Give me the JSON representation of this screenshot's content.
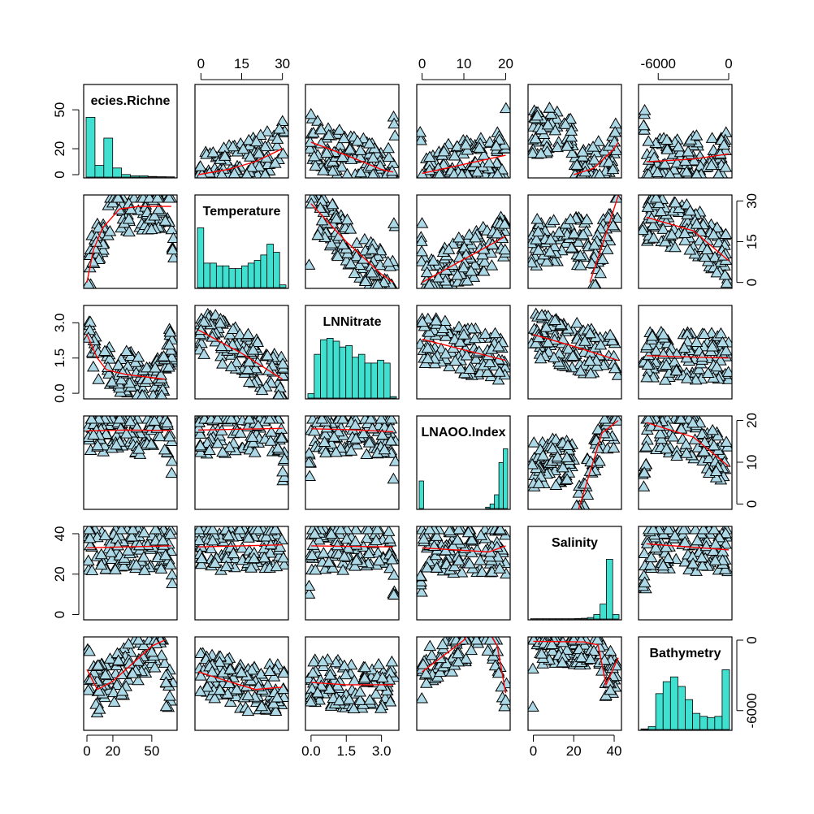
{
  "chart_data": {
    "type": "scatter-matrix",
    "title": "",
    "variables": [
      {
        "name": "Species.Richness",
        "display_label": "ecies.Richne",
        "range": [
          0,
          67
        ],
        "tick_values": [
          0,
          20,
          50
        ],
        "tick_labels": [
          "0",
          "20",
          "50"
        ],
        "hist_counts": [
          46,
          9,
          30,
          7,
          2,
          1,
          1,
          0.5,
          0.3,
          0.2
        ]
      },
      {
        "name": "Temperature",
        "display_label": "Temperature",
        "range": [
          -1,
          31
        ],
        "tick_values": [
          0,
          15,
          30
        ],
        "tick_labels": [
          "0",
          "15",
          "30"
        ],
        "hist_counts": [
          22,
          9,
          9,
          8,
          8,
          7,
          7,
          8,
          9,
          10,
          12,
          16,
          13,
          1
        ]
      },
      {
        "name": "LNNitrate",
        "display_label": "LNNitrate",
        "range": [
          -0.1,
          3.6
        ],
        "tick_values": [
          0.0,
          1.5,
          3.0
        ],
        "tick_labels": [
          "0.0",
          "1.5",
          "3.0"
        ],
        "hist_counts": [
          3,
          30,
          40,
          41,
          39,
          35,
          36,
          28,
          30,
          24,
          24,
          26,
          24,
          1
        ]
      },
      {
        "name": "LNAOO.Index",
        "display_label": "LNAOO.Index",
        "range": [
          -0.5,
          20.3
        ],
        "tick_values": [
          0,
          10,
          20
        ],
        "tick_labels": [
          "0",
          "10",
          "20"
        ],
        "hist_counts": [
          6,
          0,
          0,
          0,
          0,
          0,
          0,
          0,
          0,
          0,
          0,
          0,
          0,
          0,
          0,
          0.3,
          1,
          3,
          10,
          13
        ]
      },
      {
        "name": "Salinity",
        "display_label": "Salinity",
        "range": [
          -1,
          42
        ],
        "tick_values": [
          0,
          20,
          40
        ],
        "tick_labels": [
          "0",
          "20",
          "40"
        ],
        "hist_counts": [
          0.2,
          0.2,
          0.2,
          0.2,
          0.2,
          0.2,
          0.2,
          0.3,
          0.5,
          1,
          3,
          10,
          40,
          3
        ]
      },
      {
        "name": "Bathymetry",
        "display_label": "Bathymetry",
        "range": [
          -7400,
          0
        ],
        "tick_values": [
          -6000,
          0
        ],
        "tick_labels": [
          "-6000",
          "0"
        ],
        "hist_counts": [
          1,
          5,
          60,
          80,
          88,
          72,
          50,
          27,
          22,
          20,
          22,
          100
        ]
      }
    ],
    "red_lowess_lines": {
      "1,0": [
        [
          0,
          0
        ],
        [
          5,
          12
        ],
        [
          12,
          20
        ],
        [
          25,
          27
        ],
        [
          40,
          28
        ],
        [
          65,
          28
        ]
      ],
      "2,0": [
        [
          0,
          2.5
        ],
        [
          8,
          1.5
        ],
        [
          15,
          1.0
        ],
        [
          30,
          0.8
        ],
        [
          60,
          0.6
        ]
      ],
      "3,0": [
        [
          0,
          17.5
        ],
        [
          30,
          17.7
        ],
        [
          65,
          17.6
        ]
      ],
      "4,0": [
        [
          0,
          33
        ],
        [
          30,
          33.5
        ],
        [
          65,
          34
        ]
      ],
      "5,0": [
        [
          0,
          -2500
        ],
        [
          8,
          -4200
        ],
        [
          20,
          -3500
        ],
        [
          35,
          -2000
        ],
        [
          50,
          -500
        ],
        [
          60,
          0
        ]
      ],
      "0,1": [
        [
          -1,
          0
        ],
        [
          10,
          4
        ],
        [
          20,
          10
        ],
        [
          30,
          20
        ]
      ],
      "2,1": [
        [
          -1,
          2.7
        ],
        [
          15,
          1.7
        ],
        [
          30,
          0.6
        ]
      ],
      "3,1": [
        [
          -1,
          17.7
        ],
        [
          30,
          18.1
        ]
      ],
      "4,1": [
        [
          -1,
          33.5
        ],
        [
          15,
          34
        ],
        [
          30,
          34.5
        ]
      ],
      "5,1": [
        [
          -1,
          -2700
        ],
        [
          10,
          -3500
        ],
        [
          20,
          -4200
        ],
        [
          30,
          -4000
        ]
      ],
      "0,2": [
        [
          0,
          25
        ],
        [
          1.5,
          15
        ],
        [
          3,
          4
        ],
        [
          3.5,
          2
        ]
      ],
      "1,2": [
        [
          0,
          29
        ],
        [
          1.5,
          15
        ],
        [
          3,
          3
        ],
        [
          3.5,
          0
        ]
      ],
      "3,2": [
        [
          0,
          18
        ],
        [
          1.5,
          17.8
        ],
        [
          3.5,
          17.3
        ]
      ],
      "4,2": [
        [
          0,
          34
        ],
        [
          3.5,
          33.5
        ]
      ],
      "5,2": [
        [
          0,
          -3600
        ],
        [
          1.5,
          -3800
        ],
        [
          3.5,
          -3800
        ]
      ],
      "0,3": [
        [
          0,
          1
        ],
        [
          20,
          15
        ]
      ],
      "1,3": [
        [
          0,
          0
        ],
        [
          20,
          17
        ]
      ],
      "2,3": [
        [
          0,
          2.3
        ],
        [
          20,
          1.4
        ]
      ],
      "4,3": [
        [
          0,
          33
        ],
        [
          16,
          31
        ],
        [
          20,
          34
        ]
      ],
      "5,3": [
        [
          0,
          -2700
        ],
        [
          10,
          0
        ],
        [
          14,
          2000
        ],
        [
          18,
          -500
        ],
        [
          20,
          -4500
        ]
      ],
      "0,4": [
        [
          20,
          0
        ],
        [
          30,
          5
        ],
        [
          40,
          20
        ],
        [
          42,
          25
        ]
      ],
      "1,4": [
        [
          28,
          0
        ],
        [
          36,
          18
        ],
        [
          42,
          32
        ]
      ],
      "2,4": [
        [
          0,
          2.5
        ],
        [
          20,
          2.0
        ],
        [
          42,
          1.4
        ]
      ],
      "3,4": [
        [
          20,
          -5
        ],
        [
          34,
          17
        ],
        [
          42,
          20
        ]
      ],
      "5,4": [
        [
          0,
          -100
        ],
        [
          25,
          -150
        ],
        [
          32,
          -400
        ],
        [
          36,
          -3800
        ],
        [
          42,
          -1500
        ]
      ],
      "0,5": [
        [
          -7000,
          10
        ],
        [
          -3000,
          12
        ],
        [
          0,
          16
        ]
      ],
      "1,5": [
        [
          -7000,
          24
        ],
        [
          -3000,
          19
        ],
        [
          0,
          8
        ]
      ],
      "2,5": [
        [
          -7000,
          1.6
        ],
        [
          0,
          1.5
        ]
      ],
      "3,5": [
        [
          -7000,
          19.5
        ],
        [
          -3000,
          16
        ],
        [
          0,
          9
        ]
      ],
      "4,5": [
        [
          -7000,
          35
        ],
        [
          0,
          32
        ]
      ]
    },
    "marker": "triangle",
    "marker_fill": "#add8e6",
    "hist_fill": "#40e0d0",
    "smoother_color": "#ff0000"
  }
}
